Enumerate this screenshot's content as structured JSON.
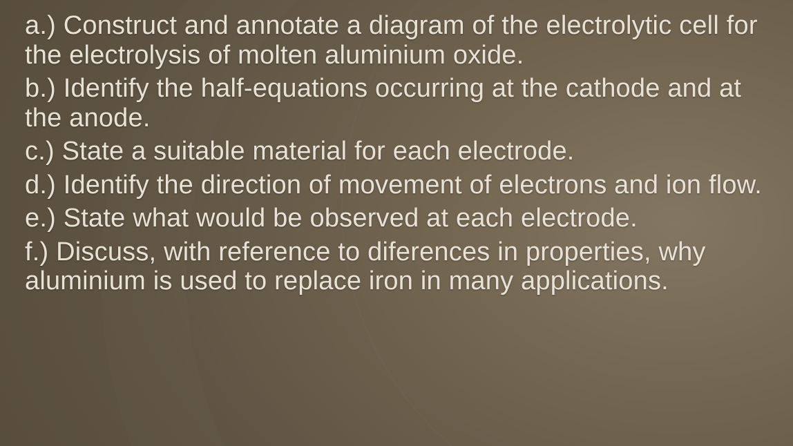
{
  "slide": {
    "background_gradient": {
      "type": "radial",
      "center": "85% 50%",
      "stops": [
        "#837763",
        "#726651",
        "#5f5443",
        "#514737"
      ]
    },
    "text_color": "#e8e2d6",
    "font_family": "Arial",
    "font_size_pt": 28,
    "line_height": 1.12,
    "questions": [
      {
        "label": "a.)",
        "text": "Construct and annotate a diagram of the electrolytic cell for the electrolysis of molten aluminium oxide."
      },
      {
        "label": "b.)",
        "text": "Identify the half-equations occurring at the cathode and at the anode."
      },
      {
        "label": "c.)",
        "text": "State a suitable material for each electrode."
      },
      {
        "label": "d.)",
        "text": "Identify the direction of movement of electrons and ion flow."
      },
      {
        "label": "e.)",
        "text": "State what would be observed at each electrode."
      },
      {
        "label": "f.)",
        "text": "Discuss, with reference to diferences in properties, why aluminium is used to replace iron in many applications."
      }
    ]
  }
}
